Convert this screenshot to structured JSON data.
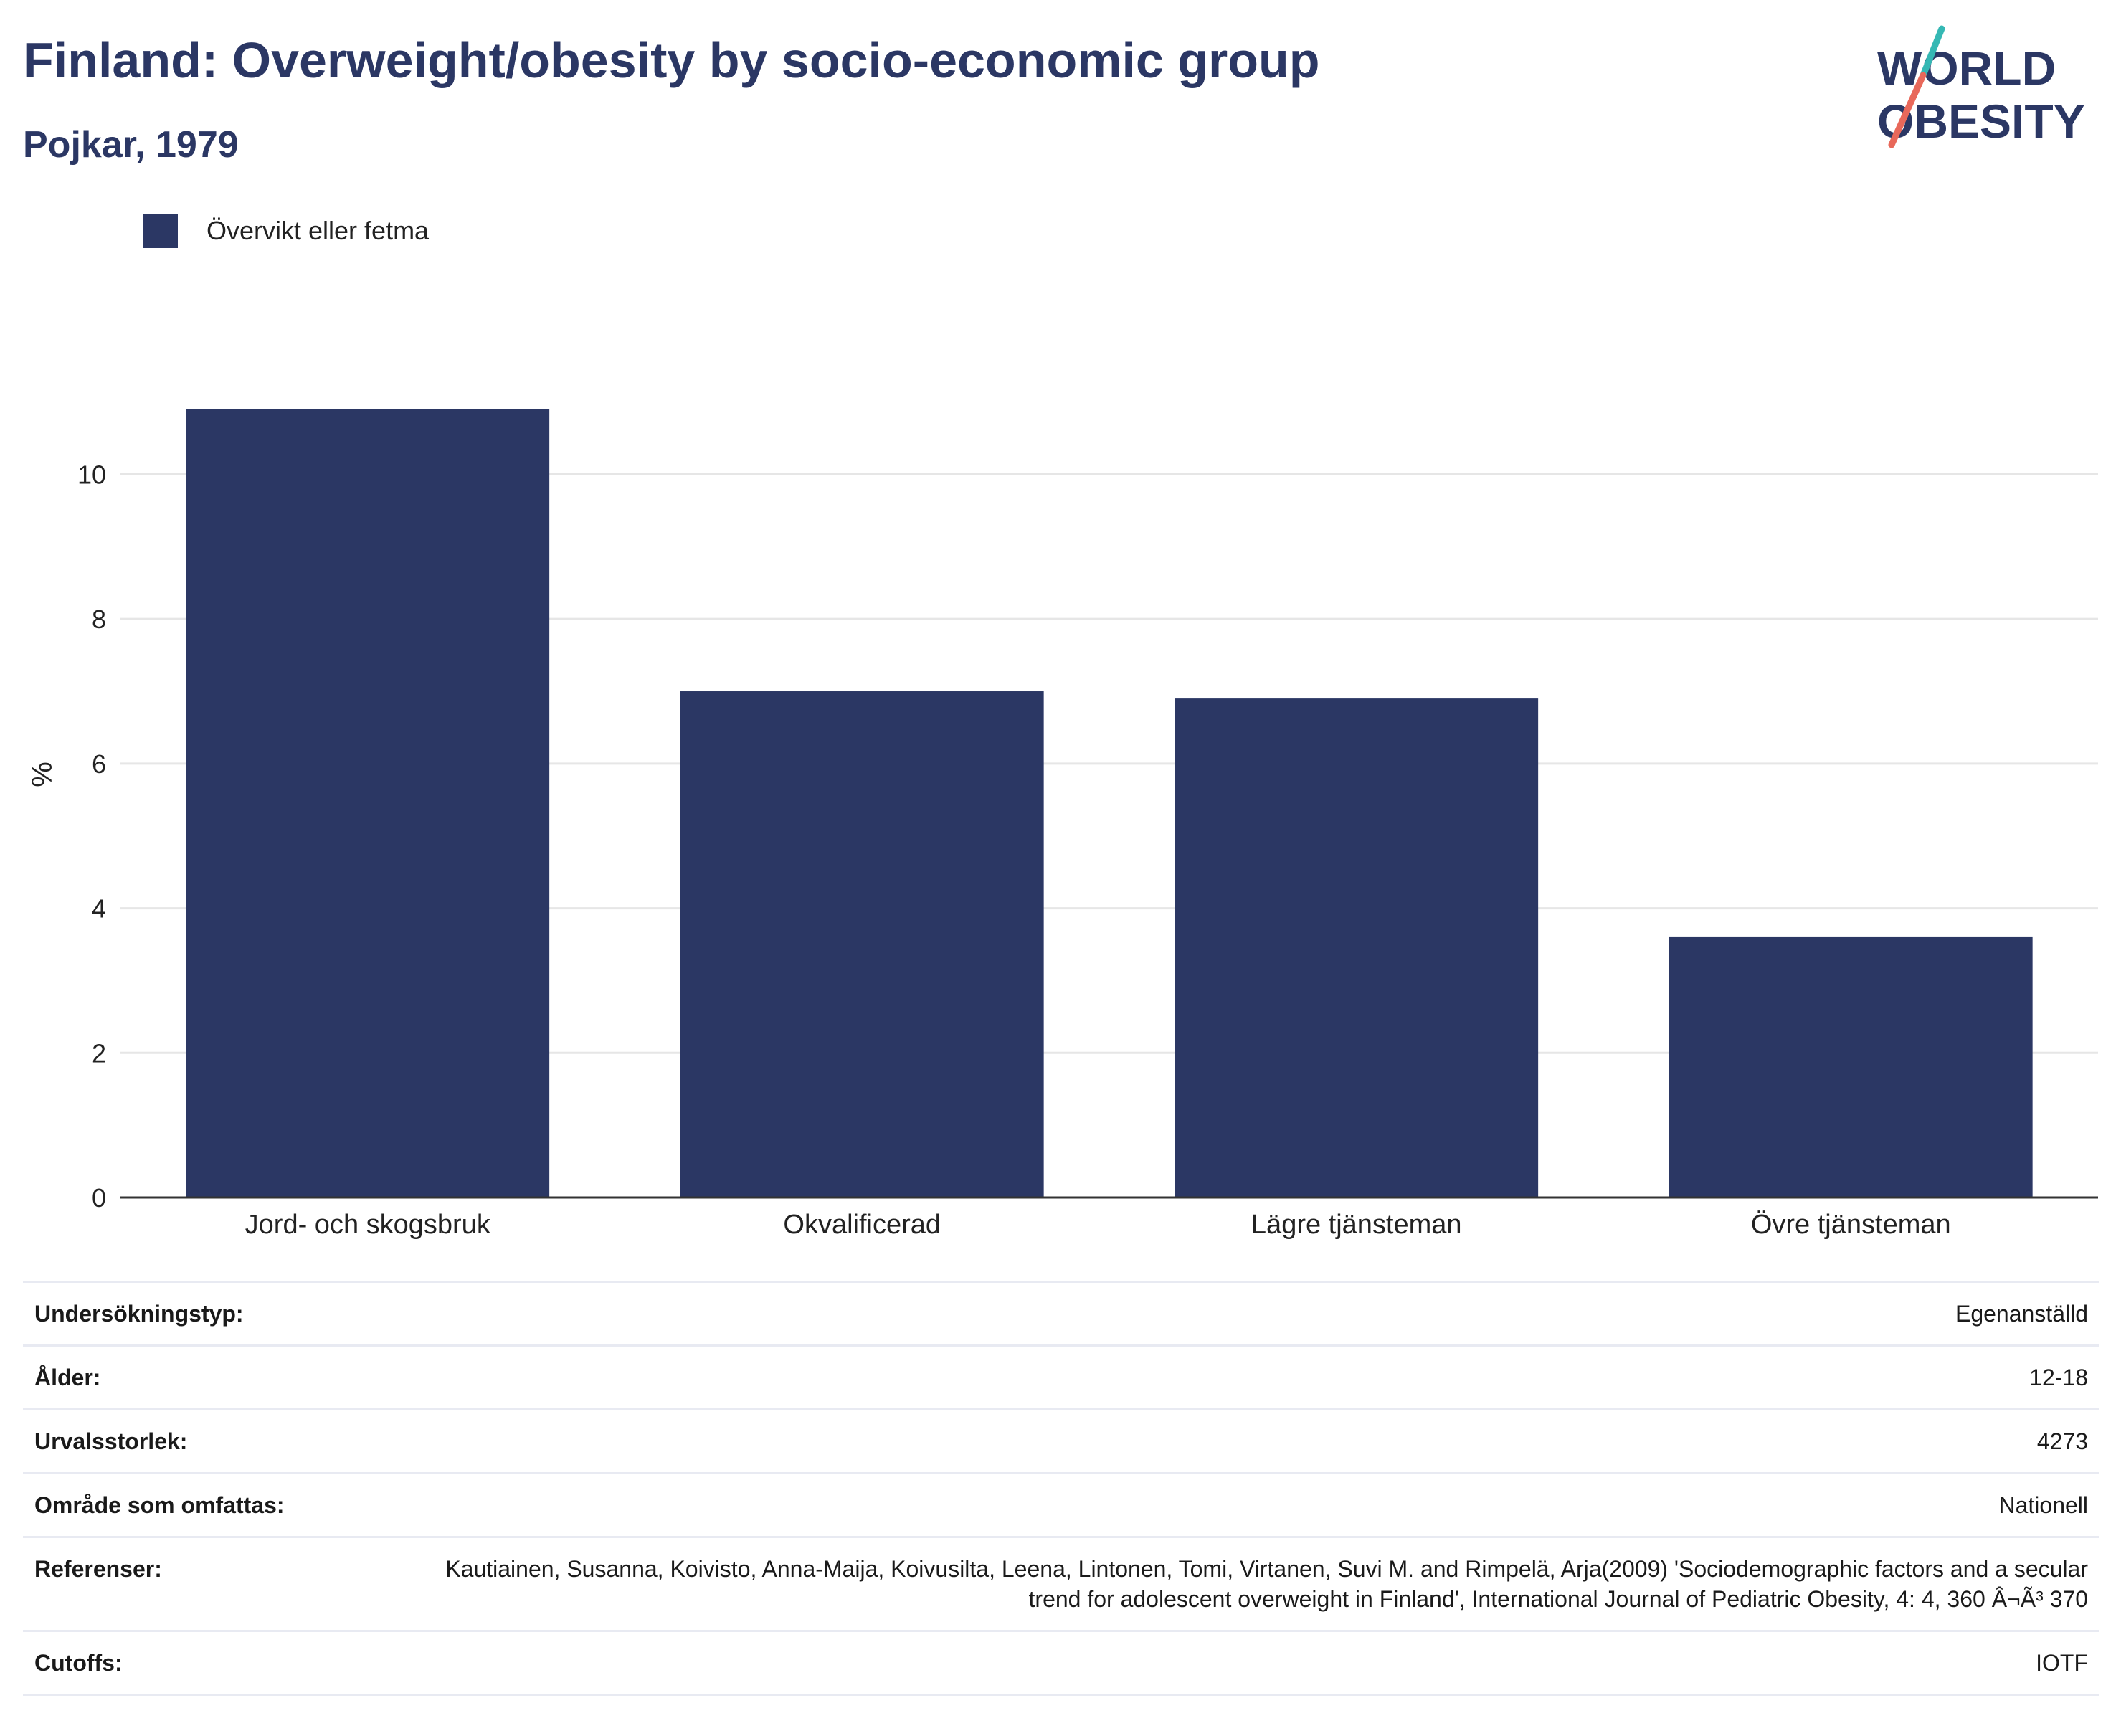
{
  "header": {
    "title": "Finland: Overweight/obesity by socio-economic group",
    "subtitle": "Pojkar, 1979"
  },
  "logo": {
    "line1": "WORLD",
    "line2": "OBESITY",
    "accent_colors": [
      "#35b8b4",
      "#e8685a"
    ]
  },
  "colors": {
    "bar": "#2b3764",
    "grid": "#e6e6e6",
    "axis": "#333333",
    "text_dark": "#2b3764"
  },
  "legend": {
    "label": "Övervikt eller fetma"
  },
  "chart_data": {
    "type": "bar",
    "title": "",
    "xlabel": "",
    "ylabel": "%",
    "ylim": [
      0,
      11.7
    ],
    "yticks": [
      0,
      2,
      4,
      6,
      8,
      10
    ],
    "grid": true,
    "legend_position": "top-left",
    "categories": [
      "Jord- och skogsbruk",
      "Okvalificerad",
      "Lägre tjänsteman",
      "Övre tjänsteman"
    ],
    "series": [
      {
        "name": "Övervikt eller fetma",
        "values": [
          10.9,
          7.0,
          6.9,
          3.6
        ]
      }
    ]
  },
  "info": [
    {
      "key": "Undersökningstyp:",
      "value": "Egenanställd"
    },
    {
      "key": "Ålder:",
      "value": "12-18"
    },
    {
      "key": "Urvalsstorlek:",
      "value": "4273"
    },
    {
      "key": "Område som omfattas:",
      "value": "Nationell"
    },
    {
      "key": "Referenser:",
      "value": "Kautiainen, Susanna, Koivisto, Anna-Maija, Koivusilta, Leena, Lintonen, Tomi, Virtanen, Suvi M. and Rimpelä, Arja(2009) 'Sociodemographic factors and a secular trend for adolescent overweight in Finland', International Journal of Pediatric Obesity, 4: 4, 360 Â¬Ã³ 370"
    },
    {
      "key": "Cutoffs:",
      "value": "IOTF"
    }
  ]
}
